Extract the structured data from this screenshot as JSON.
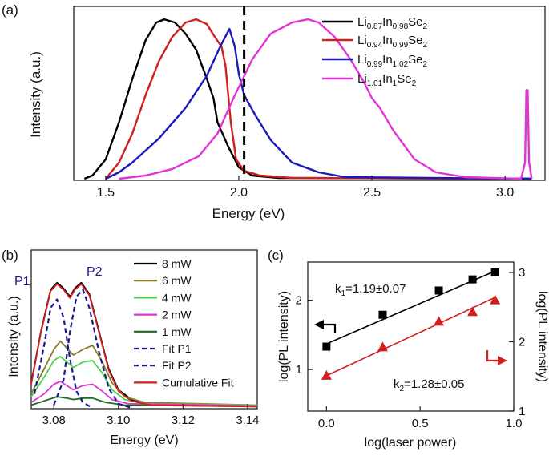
{
  "panels": {
    "a": {
      "label": "(a)",
      "xlabel": "Energy (eV)",
      "ylabel": "Intensity (a.u.)",
      "xticks": [
        "1.5",
        "2.0",
        "2.5",
        "3.0"
      ],
      "legend": [
        {
          "base": "Li",
          "s1": "0.87",
          "mid": "In",
          "s2": "0.98",
          "tail": "Se",
          "s3": "2",
          "color": "#000000"
        },
        {
          "base": "Li",
          "s1": "0.94",
          "mid": "In",
          "s2": "0.99",
          "tail": "Se",
          "s3": "2",
          "color": "#d21e1e"
        },
        {
          "base": "Li",
          "s1": "0.99",
          "mid": "In",
          "s2": "1.02",
          "tail": "Se",
          "s3": "2",
          "color": "#1a1ab8"
        },
        {
          "base": "Li",
          "s1": "1.01",
          "mid": "In",
          "s2": "1",
          "tail": "Se",
          "s3": "2",
          "color": "#e233d6"
        }
      ]
    },
    "b": {
      "label": "(b)",
      "xlabel": "Energy (eV)",
      "ylabel": "Intensity (a.u.)",
      "xticks": [
        "3.08",
        "3.10",
        "3.12",
        "3.14"
      ],
      "peak_labels": [
        "P1",
        "P2"
      ],
      "legend": [
        {
          "label": "8 mW",
          "color": "#000000",
          "dash": false
        },
        {
          "label": "6 mW",
          "color": "#8a7a2a",
          "dash": false
        },
        {
          "label": "4 mW",
          "color": "#4fd14f",
          "dash": false
        },
        {
          "label": "2 mW",
          "color": "#e233d6",
          "dash": false
        },
        {
          "label": "1 mW",
          "color": "#1e6b1e",
          "dash": false
        },
        {
          "label": "Fit P1",
          "color": "#1a1a8c",
          "dash": true
        },
        {
          "label": "Fit P2",
          "color": "#1a1a8c",
          "dash": true
        },
        {
          "label": "Cumulative Fit",
          "color": "#d21e1e",
          "dash": false
        }
      ]
    },
    "c": {
      "label": "(c)",
      "xlabel": "log(laser power)",
      "ylabel_left": "log(PL intensity)",
      "ylabel_right": "log(PL intensity)",
      "xticks": [
        "0.0",
        "0.5",
        "1.0"
      ],
      "yticks_left": [
        "1",
        "2"
      ],
      "yticks_right": [
        "1",
        "2",
        "3"
      ],
      "k1": {
        "k": "k",
        "sub": "1",
        "val": "=1.19±0.07"
      },
      "k2": {
        "k": "k",
        "sub": "2",
        "val": "=1.28±0.05"
      }
    }
  },
  "chart_data": [
    {
      "type": "line",
      "panel": "a",
      "xlabel": "Energy (eV)",
      "ylabel": "Intensity (a.u.)",
      "xlim": [
        1.38,
        3.15
      ],
      "ylim": [
        0,
        1.05
      ],
      "vline": {
        "x": 2.02,
        "style": "dashed"
      },
      "series": [
        {
          "name": "Li0.87In0.98Se2",
          "color": "#000000",
          "points": [
            [
              1.42,
              0.0
            ],
            [
              1.45,
              0.02
            ],
            [
              1.5,
              0.12
            ],
            [
              1.55,
              0.35
            ],
            [
              1.6,
              0.62
            ],
            [
              1.65,
              0.86
            ],
            [
              1.69,
              0.97
            ],
            [
              1.72,
              0.99
            ],
            [
              1.76,
              0.97
            ],
            [
              1.8,
              0.9
            ],
            [
              1.84,
              0.8
            ],
            [
              1.88,
              0.62
            ],
            [
              1.905,
              0.5
            ],
            [
              1.92,
              0.35
            ],
            [
              1.96,
              0.2
            ],
            [
              2.0,
              0.07
            ],
            [
              2.05,
              0.02
            ],
            [
              2.15,
              0.005
            ],
            [
              3.1,
              0.0
            ]
          ]
        },
        {
          "name": "Li0.94In0.99Se2",
          "color": "#d21e1e",
          "points": [
            [
              1.5,
              0.0
            ],
            [
              1.55,
              0.1
            ],
            [
              1.6,
              0.28
            ],
            [
              1.65,
              0.52
            ],
            [
              1.7,
              0.73
            ],
            [
              1.75,
              0.88
            ],
            [
              1.8,
              0.97
            ],
            [
              1.84,
              0.99
            ],
            [
              1.88,
              0.96
            ],
            [
              1.91,
              0.88
            ],
            [
              1.935,
              0.82
            ],
            [
              1.95,
              0.7
            ],
            [
              1.97,
              0.35
            ],
            [
              1.99,
              0.12
            ],
            [
              2.02,
              0.05
            ],
            [
              2.08,
              0.02
            ],
            [
              2.2,
              0.005
            ],
            [
              3.1,
              0.0
            ]
          ]
        },
        {
          "name": "Li0.99In1.02Se2",
          "color": "#1a1ab8",
          "points": [
            [
              1.5,
              0.0
            ],
            [
              1.55,
              0.04
            ],
            [
              1.6,
              0.1
            ],
            [
              1.7,
              0.25
            ],
            [
              1.8,
              0.44
            ],
            [
              1.88,
              0.64
            ],
            [
              1.93,
              0.82
            ],
            [
              1.965,
              0.93
            ],
            [
              1.985,
              0.82
            ],
            [
              2.0,
              0.65
            ],
            [
              2.02,
              0.52
            ],
            [
              2.06,
              0.4
            ],
            [
              2.12,
              0.24
            ],
            [
              2.2,
              0.1
            ],
            [
              2.3,
              0.04
            ],
            [
              2.4,
              0.01
            ],
            [
              3.1,
              0.0
            ]
          ]
        },
        {
          "name": "Li1.01In1Se2",
          "color": "#e233d6",
          "points": [
            [
              1.55,
              0.0
            ],
            [
              1.65,
              0.02
            ],
            [
              1.75,
              0.06
            ],
            [
              1.85,
              0.14
            ],
            [
              1.92,
              0.28
            ],
            [
              1.98,
              0.5
            ],
            [
              2.05,
              0.74
            ],
            [
              2.12,
              0.9
            ],
            [
              2.2,
              0.97
            ],
            [
              2.26,
              0.99
            ],
            [
              2.3,
              0.97
            ],
            [
              2.36,
              0.88
            ],
            [
              2.42,
              0.74
            ],
            [
              2.47,
              0.6
            ],
            [
              2.5,
              0.5
            ],
            [
              2.53,
              0.44
            ],
            [
              2.58,
              0.3
            ],
            [
              2.66,
              0.12
            ],
            [
              2.74,
              0.04
            ],
            [
              2.85,
              0.01
            ],
            [
              3.06,
              0.0
            ],
            [
              3.075,
              0.1
            ],
            [
              3.08,
              0.55
            ],
            [
              3.085,
              0.55
            ],
            [
              3.09,
              0.1
            ],
            [
              3.1,
              0.0
            ]
          ]
        }
      ]
    },
    {
      "type": "line",
      "panel": "b",
      "xlabel": "Energy (eV)",
      "ylabel": "Intensity (a.u.)",
      "xlim": [
        3.073,
        3.143
      ],
      "ylim": [
        0,
        1.1
      ],
      "series": [
        {
          "name": "8 mW",
          "color": "#000000",
          "dash": false,
          "points": [
            [
              3.073,
              0.18
            ],
            [
              3.076,
              0.55
            ],
            [
              3.079,
              0.85
            ],
            [
              3.081,
              0.9
            ],
            [
              3.083,
              0.86
            ],
            [
              3.085,
              0.8
            ],
            [
              3.0865,
              0.86
            ],
            [
              3.0885,
              0.9
            ],
            [
              3.091,
              0.82
            ],
            [
              3.094,
              0.55
            ],
            [
              3.097,
              0.28
            ],
            [
              3.1,
              0.13
            ],
            [
              3.104,
              0.06
            ],
            [
              3.11,
              0.03
            ],
            [
              3.143,
              0.02
            ]
          ]
        },
        {
          "name": "6 mW",
          "color": "#8a7a2a",
          "dash": false,
          "points": [
            [
              3.073,
              0.1
            ],
            [
              3.077,
              0.28
            ],
            [
              3.08,
              0.42
            ],
            [
              3.082,
              0.48
            ],
            [
              3.084,
              0.43
            ],
            [
              3.086,
              0.38
            ],
            [
              3.089,
              0.42
            ],
            [
              3.092,
              0.45
            ],
            [
              3.095,
              0.33
            ],
            [
              3.098,
              0.18
            ],
            [
              3.102,
              0.08
            ],
            [
              3.108,
              0.04
            ],
            [
              3.143,
              0.02
            ]
          ]
        },
        {
          "name": "4 mW",
          "color": "#4fd14f",
          "dash": false,
          "points": [
            [
              3.073,
              0.08
            ],
            [
              3.077,
              0.22
            ],
            [
              3.08,
              0.34
            ],
            [
              3.082,
              0.37
            ],
            [
              3.084,
              0.33
            ],
            [
              3.086,
              0.29
            ],
            [
              3.089,
              0.33
            ],
            [
              3.092,
              0.34
            ],
            [
              3.095,
              0.25
            ],
            [
              3.098,
              0.13
            ],
            [
              3.102,
              0.06
            ],
            [
              3.108,
              0.03
            ],
            [
              3.143,
              0.02
            ]
          ]
        },
        {
          "name": "2 mW",
          "color": "#e233d6",
          "dash": false,
          "points": [
            [
              3.073,
              0.04
            ],
            [
              3.077,
              0.1
            ],
            [
              3.08,
              0.17
            ],
            [
              3.082,
              0.19
            ],
            [
              3.084,
              0.16
            ],
            [
              3.086,
              0.13
            ],
            [
              3.089,
              0.16
            ],
            [
              3.092,
              0.17
            ],
            [
              3.095,
              0.12
            ],
            [
              3.098,
              0.06
            ],
            [
              3.103,
              0.03
            ],
            [
              3.143,
              0.015
            ]
          ]
        },
        {
          "name": "1 mW",
          "color": "#1e6b1e",
          "dash": false,
          "points": [
            [
              3.073,
              0.02
            ],
            [
              3.077,
              0.05
            ],
            [
              3.081,
              0.08
            ],
            [
              3.084,
              0.07
            ],
            [
              3.086,
              0.06
            ],
            [
              3.089,
              0.07
            ],
            [
              3.092,
              0.07
            ],
            [
              3.096,
              0.04
            ],
            [
              3.102,
              0.02
            ],
            [
              3.143,
              0.01
            ]
          ]
        },
        {
          "name": "Fit P1",
          "color": "#1a1a8c",
          "dash": true,
          "points": [
            [
              3.074,
              0.1
            ],
            [
              3.077,
              0.45
            ],
            [
              3.079,
              0.72
            ],
            [
              3.081,
              0.78
            ],
            [
              3.083,
              0.65
            ],
            [
              3.085,
              0.35
            ],
            [
              3.087,
              0.12
            ],
            [
              3.089,
              0.04
            ],
            [
              3.092,
              0.0
            ]
          ]
        },
        {
          "name": "Fit P2",
          "color": "#1a1a8c",
          "dash": true,
          "points": [
            [
              3.08,
              0.02
            ],
            [
              3.083,
              0.2
            ],
            [
              3.085,
              0.55
            ],
            [
              3.087,
              0.8
            ],
            [
              3.089,
              0.85
            ],
            [
              3.091,
              0.72
            ],
            [
              3.094,
              0.4
            ],
            [
              3.097,
              0.14
            ],
            [
              3.1,
              0.03
            ],
            [
              3.104,
              0.0
            ]
          ]
        },
        {
          "name": "Cumulative Fit",
          "color": "#d21e1e",
          "dash": false,
          "points": [
            [
              3.073,
              0.17
            ],
            [
              3.076,
              0.54
            ],
            [
              3.079,
              0.84
            ],
            [
              3.081,
              0.89
            ],
            [
              3.083,
              0.85
            ],
            [
              3.085,
              0.79
            ],
            [
              3.0865,
              0.85
            ],
            [
              3.0885,
              0.89
            ],
            [
              3.091,
              0.81
            ],
            [
              3.094,
              0.54
            ],
            [
              3.097,
              0.27
            ],
            [
              3.1,
              0.12
            ],
            [
              3.104,
              0.05
            ],
            [
              3.11,
              0.02
            ],
            [
              3.143,
              0.01
            ]
          ]
        }
      ]
    },
    {
      "type": "scatter",
      "panel": "c",
      "xlabel": "log(laser power)",
      "ylabel": "log(PL intensity)",
      "y2label": "log(PL intensity)",
      "xlim": [
        -0.1,
        1.0
      ],
      "ylim_left": [
        0.4,
        2.55
      ],
      "ylim_right": [
        1.0,
        3.15
      ],
      "series": [
        {
          "name": "k1",
          "color": "#000000",
          "marker": "square",
          "axis": "left",
          "x": [
            0.0,
            0.3,
            0.6,
            0.78,
            0.9
          ],
          "y": [
            1.33,
            1.79,
            2.14,
            2.3,
            2.4
          ],
          "fit": [
            [
              0.0,
              1.37
            ],
            [
              0.9,
              2.42
            ]
          ]
        },
        {
          "name": "k2",
          "color": "#d21e1e",
          "marker": "triangle",
          "axis": "right",
          "x": [
            0.0,
            0.3,
            0.6,
            0.78,
            0.9
          ],
          "y": [
            1.51,
            1.92,
            2.29,
            2.43,
            2.6
          ],
          "fit": [
            [
              0.0,
              1.51
            ],
            [
              0.9,
              2.64
            ]
          ]
        }
      ]
    }
  ]
}
